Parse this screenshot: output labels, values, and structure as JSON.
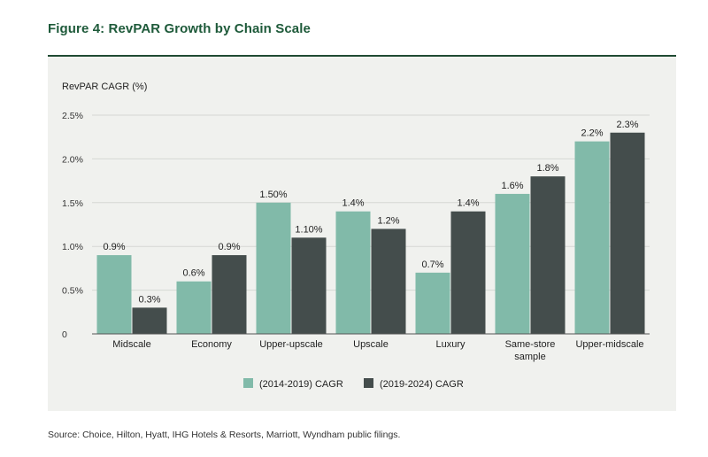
{
  "figure": {
    "title": "Figure 4: RevPAR Growth by Chain Scale",
    "source": "Source: Choice, Hilton, Hyatt, IHG Hotels & Resorts, Marriott, Wyndham public filings."
  },
  "colors": {
    "series1": "#81baa9",
    "series2": "#444d4c",
    "title": "#1e5a3a",
    "panel": "#f0f1ee",
    "rule": "#1f4a33"
  },
  "chart_data": {
    "type": "bar",
    "ylabel": "RevPAR CAGR (%)",
    "ylim": [
      0,
      2.5
    ],
    "yticks": [
      0,
      0.5,
      1.0,
      1.5,
      2.0,
      2.5
    ],
    "ytick_labels": [
      "0",
      "0.5%",
      "1.0%",
      "1.5%",
      "2.0%",
      "2.5%"
    ],
    "grid": true,
    "legend_position": "bottom-center",
    "categories": [
      [
        "Midscale"
      ],
      [
        "Economy"
      ],
      [
        "Upper-upscale"
      ],
      [
        "Upscale"
      ],
      [
        "Luxury"
      ],
      [
        "Same-store",
        "sample"
      ],
      [
        "Upper-midscale"
      ]
    ],
    "series": [
      {
        "name": "(2014-2019) CAGR",
        "values": [
          0.9,
          0.6,
          1.5,
          1.4,
          0.7,
          1.6,
          2.2
        ],
        "labels": [
          "0.9%",
          "0.6%",
          "1.50%",
          "1.4%",
          "0.7%",
          "1.6%",
          "2.2%"
        ]
      },
      {
        "name": "(2019-2024) CAGR",
        "values": [
          0.3,
          0.9,
          1.1,
          1.2,
          1.4,
          1.8,
          2.3
        ],
        "labels": [
          "0.3%",
          "0.9%",
          "1.10%",
          "1.2%",
          "1.4%",
          "1.8%",
          "2.3%"
        ]
      }
    ]
  }
}
